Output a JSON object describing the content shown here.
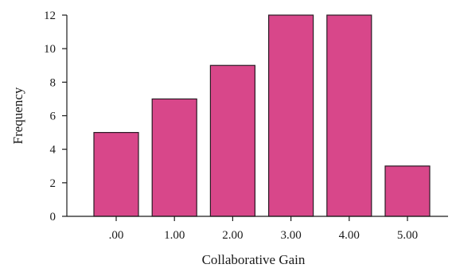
{
  "chart_data": {
    "type": "bar",
    "categories": [
      ".00",
      "1.00",
      "2.00",
      "3.00",
      "4.00",
      "5.00"
    ],
    "values": [
      5,
      7,
      9,
      12,
      12,
      3
    ],
    "xlabel": "Collaborative Gain",
    "ylabel": "Frequency",
    "ylim": [
      0,
      12
    ],
    "yticks": [
      "0",
      "2",
      "4",
      "6",
      "8",
      "10",
      "12"
    ],
    "grid": false,
    "legend": "none",
    "colors": {
      "bar": "#d8478a",
      "bar_edge": "#2a1a24",
      "axis": "#1a1a1a"
    }
  }
}
